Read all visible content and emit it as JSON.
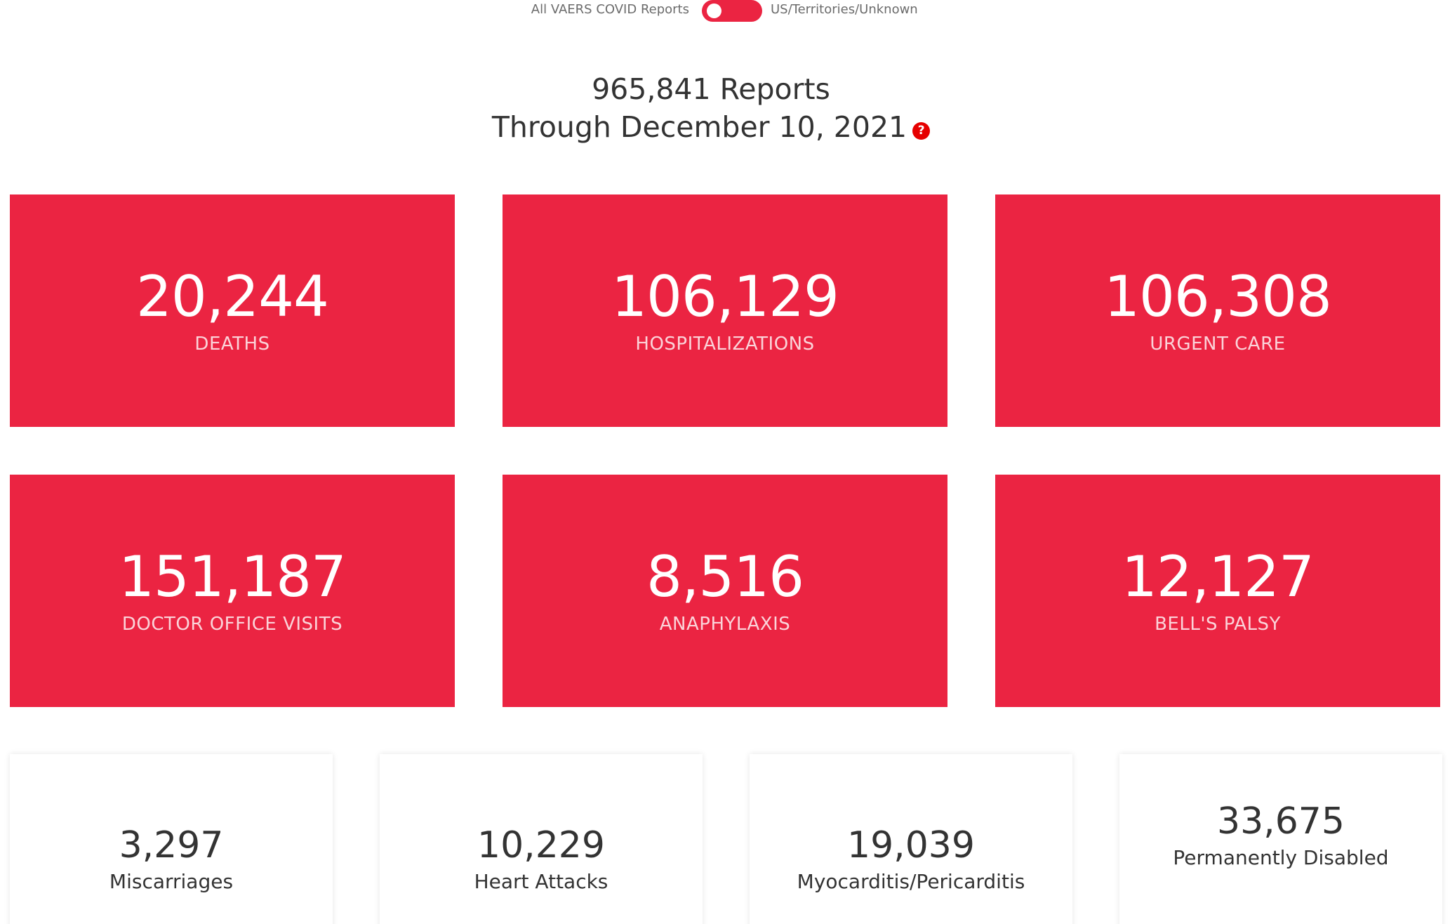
{
  "toggle": {
    "left_label": "All VAERS COVID Reports",
    "right_label": "US/Territories/Unknown"
  },
  "summary": {
    "reports": "965,841 Reports",
    "through": "Through December 10, 2021",
    "help_glyph": "?"
  },
  "red_cards": [
    {
      "value": "20,244",
      "label": "DEATHS"
    },
    {
      "value": "106,129",
      "label": "HOSPITALIZATIONS"
    },
    {
      "value": "106,308",
      "label": "URGENT CARE"
    },
    {
      "value": "151,187",
      "label": "DOCTOR OFFICE VISITS"
    },
    {
      "value": "8,516",
      "label": "ANAPHYLAXIS"
    },
    {
      "value": "12,127",
      "label": "BELL'S PALSY"
    }
  ],
  "white_cards": [
    {
      "value": "3,297",
      "label": "Miscarriages"
    },
    {
      "value": "10,229",
      "label": "Heart Attacks"
    },
    {
      "value": "19,039",
      "label": "Myocarditis/Pericarditis"
    },
    {
      "value": "33,675",
      "label": "Permanently Disabled"
    }
  ],
  "colors": {
    "accent": "#eb2442",
    "help_icon": "#e60000",
    "text": "#333333"
  },
  "icons": {
    "help": "question-circle-icon"
  }
}
